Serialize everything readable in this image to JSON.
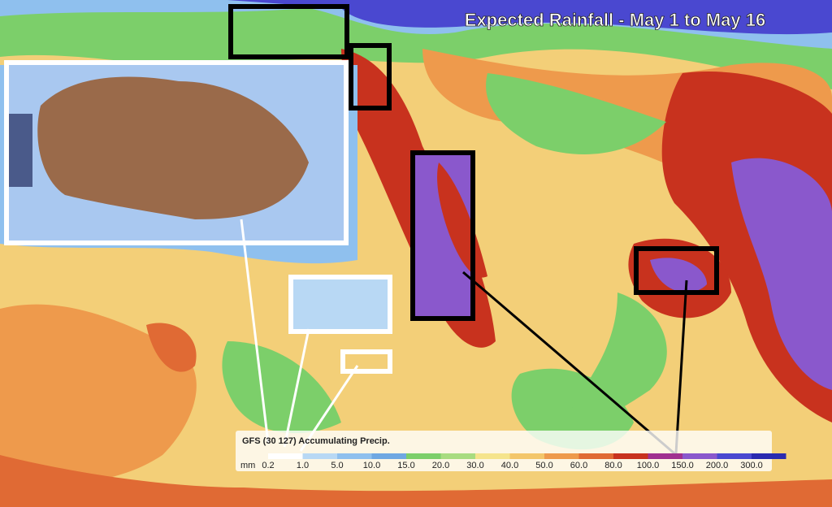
{
  "title": "Expected Rainfall - May 1 to May 16",
  "legend": {
    "title": "GFS (30 127) Accumulating Precip.",
    "unit": "mm",
    "items": [
      {
        "label": "0.2",
        "color": "#ffffff"
      },
      {
        "label": "1.0",
        "color": "#b8d8f4"
      },
      {
        "label": "5.0",
        "color": "#8fc0ee"
      },
      {
        "label": "10.0",
        "color": "#6fa8e2"
      },
      {
        "label": "15.0",
        "color": "#7ccf6a"
      },
      {
        "label": "20.0",
        "color": "#a8dc80"
      },
      {
        "label": "30.0",
        "color": "#f5e48c"
      },
      {
        "label": "40.0",
        "color": "#f3c66a"
      },
      {
        "label": "50.0",
        "color": "#ee9a4c"
      },
      {
        "label": "60.0",
        "color": "#e06a34"
      },
      {
        "label": "80.0",
        "color": "#c8321e"
      },
      {
        "label": "100.0",
        "color": "#a03090"
      },
      {
        "label": "150.0",
        "color": "#8a58cc"
      },
      {
        "label": "200.0",
        "color": "#4a48d0"
      },
      {
        "label": "300.0",
        "color": "#2a2ab0"
      }
    ]
  }
}
